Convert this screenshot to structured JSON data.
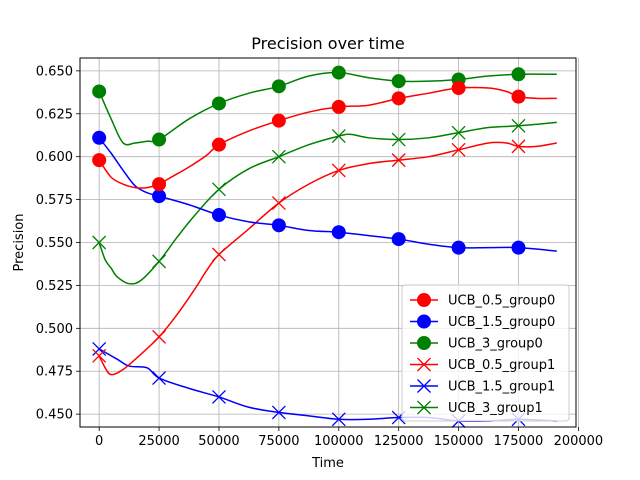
{
  "chart_data": {
    "type": "line",
    "title": "Precision over time",
    "xlabel": "Time",
    "ylabel": "Precision",
    "xlim": [
      -8000,
      199000
    ],
    "ylim": [
      0.4425,
      0.6575
    ],
    "xticks": [
      0,
      25000,
      50000,
      75000,
      100000,
      125000,
      150000,
      175000,
      200000
    ],
    "yticks": [
      0.45,
      0.475,
      0.5,
      0.525,
      0.55,
      0.575,
      0.6,
      0.625,
      0.65
    ],
    "grid": true,
    "legend_position": "lower-right",
    "series": [
      {
        "name": "UCB_0.5_group0",
        "color": "#ff0000",
        "marker": "circle",
        "x": [
          0,
          5000,
          10000,
          15000,
          20000,
          25000,
          30000,
          37500,
          45000,
          50000,
          62500,
          75000,
          87500,
          100000,
          112500,
          125000,
          137500,
          150000,
          162500,
          170000,
          175000,
          182500,
          191000
        ],
        "y": [
          0.598,
          0.588,
          0.584,
          0.582,
          0.582,
          0.584,
          0.588,
          0.594,
          0.601,
          0.607,
          0.615,
          0.621,
          0.626,
          0.629,
          0.63,
          0.634,
          0.637,
          0.64,
          0.64,
          0.638,
          0.635,
          0.634,
          0.634
        ],
        "marker_x": [
          0,
          25000,
          50000,
          75000,
          100000,
          125000,
          150000,
          175000
        ],
        "marker_y": [
          0.598,
          0.584,
          0.607,
          0.621,
          0.629,
          0.634,
          0.64,
          0.635
        ]
      },
      {
        "name": "UCB_1.5_group0",
        "color": "#0000ff",
        "marker": "circle",
        "x": [
          0,
          5000,
          10000,
          15000,
          20000,
          25000,
          37500,
          50000,
          62500,
          75000,
          87500,
          100000,
          112500,
          125000,
          137500,
          150000,
          162500,
          175000,
          191000
        ],
        "y": [
          0.611,
          0.602,
          0.592,
          0.583,
          0.579,
          0.577,
          0.572,
          0.566,
          0.562,
          0.56,
          0.557,
          0.556,
          0.554,
          0.552,
          0.549,
          0.547,
          0.547,
          0.547,
          0.545
        ],
        "marker_x": [
          0,
          25000,
          50000,
          75000,
          100000,
          125000,
          150000,
          175000
        ],
        "marker_y": [
          0.611,
          0.577,
          0.566,
          0.56,
          0.556,
          0.552,
          0.547,
          0.547
        ]
      },
      {
        "name": "UCB_3_group0",
        "color": "#008000",
        "marker": "circle",
        "x": [
          0,
          5000,
          10000,
          15000,
          20000,
          25000,
          37500,
          50000,
          62500,
          75000,
          87500,
          100000,
          112500,
          125000,
          137500,
          150000,
          162500,
          175000,
          191000
        ],
        "y": [
          0.638,
          0.622,
          0.608,
          0.608,
          0.609,
          0.61,
          0.622,
          0.631,
          0.637,
          0.641,
          0.647,
          0.649,
          0.646,
          0.644,
          0.644,
          0.645,
          0.647,
          0.648,
          0.648
        ],
        "marker_x": [
          0,
          25000,
          50000,
          75000,
          100000,
          125000,
          150000,
          175000
        ],
        "marker_y": [
          0.638,
          0.61,
          0.631,
          0.641,
          0.649,
          0.644,
          0.645,
          0.648
        ]
      },
      {
        "name": "UCB_0.5_group1",
        "color": "#ff0000",
        "marker": "x",
        "x": [
          0,
          2500,
          5000,
          10000,
          17500,
          25000,
          32500,
          40000,
          45000,
          50000,
          62500,
          75000,
          87500,
          100000,
          112500,
          125000,
          137500,
          150000,
          162500,
          170000,
          175000,
          182500,
          191000
        ],
        "y": [
          0.484,
          0.477,
          0.473,
          0.476,
          0.485,
          0.495,
          0.508,
          0.523,
          0.534,
          0.543,
          0.558,
          0.573,
          0.584,
          0.592,
          0.596,
          0.598,
          0.6,
          0.604,
          0.608,
          0.608,
          0.606,
          0.606,
          0.608
        ],
        "marker_x": [
          0,
          25000,
          50000,
          75000,
          100000,
          125000,
          150000,
          175000
        ],
        "marker_y": [
          0.484,
          0.495,
          0.543,
          0.573,
          0.592,
          0.598,
          0.604,
          0.606
        ]
      },
      {
        "name": "UCB_1.5_group1",
        "color": "#0000ff",
        "marker": "x",
        "x": [
          0,
          7500,
          12500,
          20000,
          25000,
          37500,
          50000,
          62500,
          75000,
          87500,
          100000,
          112500,
          125000,
          137500,
          150000,
          162500,
          175000,
          191000
        ],
        "y": [
          0.488,
          0.482,
          0.478,
          0.477,
          0.471,
          0.465,
          0.46,
          0.454,
          0.451,
          0.449,
          0.447,
          0.447,
          0.448,
          0.448,
          0.446,
          0.446,
          0.447,
          0.446
        ],
        "marker_x": [
          0,
          25000,
          50000,
          75000,
          100000,
          125000,
          150000,
          175000
        ],
        "marker_y": [
          0.488,
          0.471,
          0.46,
          0.451,
          0.447,
          0.448,
          0.446,
          0.447
        ]
      },
      {
        "name": "UCB_3_group1",
        "color": "#008000",
        "marker": "x",
        "x": [
          0,
          2500,
          5000,
          7500,
          12500,
          17500,
          25000,
          32500,
          40000,
          50000,
          62500,
          75000,
          87500,
          100000,
          105000,
          112500,
          125000,
          137500,
          150000,
          162500,
          175000,
          191000
        ],
        "y": [
          0.55,
          0.54,
          0.535,
          0.53,
          0.526,
          0.528,
          0.539,
          0.553,
          0.566,
          0.581,
          0.593,
          0.6,
          0.607,
          0.612,
          0.613,
          0.611,
          0.61,
          0.611,
          0.614,
          0.617,
          0.618,
          0.62
        ],
        "marker_x": [
          0,
          25000,
          50000,
          75000,
          100000,
          125000,
          150000,
          175000
        ],
        "marker_y": [
          0.55,
          0.539,
          0.581,
          0.6,
          0.612,
          0.61,
          0.614,
          0.618
        ]
      }
    ]
  }
}
